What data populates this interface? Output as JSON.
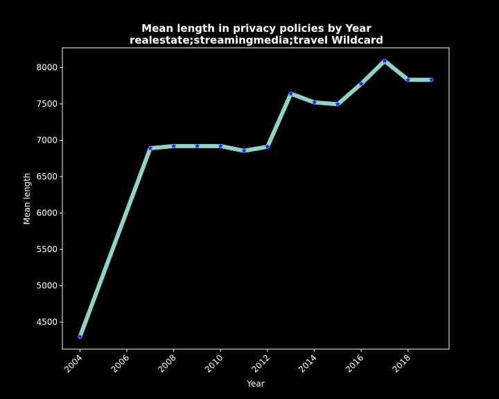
{
  "chart_data": {
    "type": "line",
    "title": "Mean length in privacy policies by Year",
    "subtitle": "realestate;streamingmedia;travel Wildcard",
    "xlabel": "Year",
    "ylabel": "Mean length",
    "x": [
      2004,
      2007,
      2008,
      2009,
      2010,
      2011,
      2012,
      2013,
      2014,
      2015,
      2016,
      2017,
      2018,
      2019
    ],
    "series": [
      {
        "values": [
          4300,
          6890,
          6920,
          6920,
          6920,
          6855,
          6910,
          7640,
          7520,
          7495,
          7775,
          8090,
          7830,
          7830
        ]
      }
    ],
    "xlim": [
      2003.25,
      2019.75
    ],
    "ylim": [
      4130,
      8270
    ],
    "x_ticks": [
      2004,
      2006,
      2008,
      2010,
      2012,
      2014,
      2016,
      2018
    ],
    "y_ticks": [
      4500,
      5000,
      5500,
      6000,
      6500,
      7000,
      7500,
      8000
    ],
    "grid": false,
    "line_color": "#8dd3c7",
    "marker_color": "#1f1fff",
    "marker": "star",
    "background": "#000000",
    "axis_color": "#ffffff"
  }
}
